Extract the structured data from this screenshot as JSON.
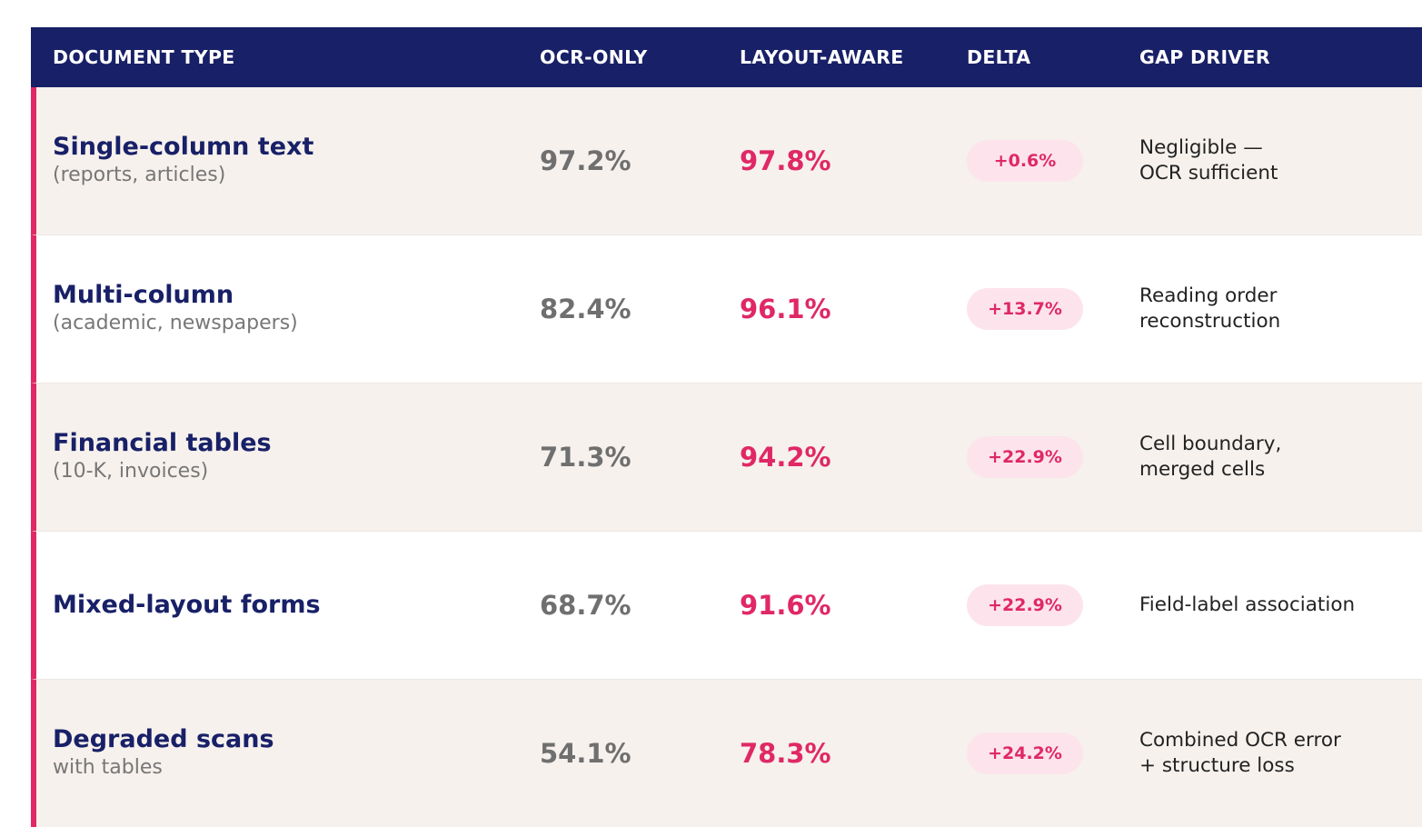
{
  "colors": {
    "header_bg": "#182067",
    "accent": "#e02866",
    "row_alt_bg": "#f6f1ed",
    "pill_bg": "#fde4ec"
  },
  "headers": {
    "document_type": "DOCUMENT TYPE",
    "ocr_only": "OCR-ONLY",
    "layout_aware": "LAYOUT-AWARE",
    "delta": "DELTA",
    "gap_driver": "GAP DRIVER"
  },
  "rows": [
    {
      "title": "Single-column text",
      "subtitle": "(reports, articles)",
      "ocr_only": "97.2%",
      "layout_aware": "97.8%",
      "delta": "+0.6%",
      "gap_driver": [
        "Negligible —",
        "OCR sufficient"
      ]
    },
    {
      "title": "Multi-column",
      "subtitle": "(academic, newspapers)",
      "ocr_only": "82.4%",
      "layout_aware": "96.1%",
      "delta": "+13.7%",
      "gap_driver": [
        "Reading order",
        "reconstruction"
      ]
    },
    {
      "title": "Financial tables",
      "subtitle": "(10-K, invoices)",
      "ocr_only": "71.3%",
      "layout_aware": "94.2%",
      "delta": "+22.9%",
      "gap_driver": [
        "Cell boundary,",
        "merged cells"
      ]
    },
    {
      "title": "Mixed-layout forms",
      "subtitle": "",
      "ocr_only": "68.7%",
      "layout_aware": "91.6%",
      "delta": "+22.9%",
      "gap_driver": [
        "Field-label association"
      ]
    },
    {
      "title": "Degraded scans",
      "subtitle": "with tables",
      "ocr_only": "54.1%",
      "layout_aware": "78.3%",
      "delta": "+24.2%",
      "gap_driver": [
        "Combined OCR error",
        "+ structure loss"
      ]
    }
  ]
}
